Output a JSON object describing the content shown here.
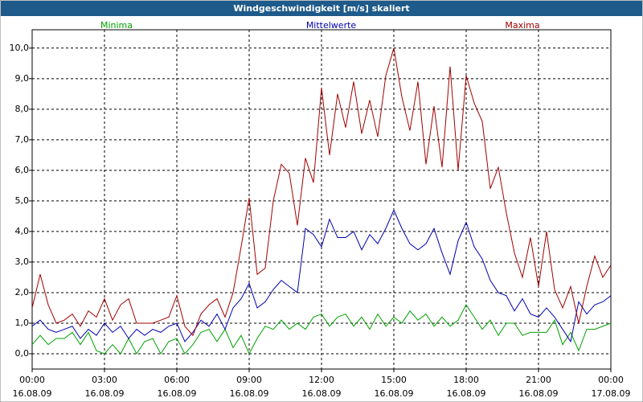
{
  "chart_data": {
    "type": "line",
    "title": "Windgeschwindigkeit [m/s] skaliert",
    "x": [
      0,
      20,
      40,
      60,
      80,
      100,
      120,
      140,
      160,
      180,
      200,
      220,
      240,
      260,
      280,
      300,
      320,
      340,
      360,
      380,
      400,
      420,
      440,
      460,
      480,
      500,
      520,
      540,
      560,
      580,
      600,
      620,
      640,
      660,
      680,
      700,
      720,
      740,
      760,
      780,
      800,
      820,
      840,
      860,
      880,
      900,
      920,
      940,
      960,
      980,
      1000,
      1020,
      1040,
      1060,
      1080,
      1100,
      1120,
      1140,
      1160,
      1180,
      1200,
      1220,
      1240,
      1260,
      1280,
      1300,
      1320,
      1340,
      1360,
      1380,
      1400,
      1420,
      1440
    ],
    "series": [
      {
        "name": "Minima",
        "color": "#00a000",
        "values": [
          0.3,
          0.6,
          0.3,
          0.5,
          0.5,
          0.7,
          0.3,
          0.7,
          0.1,
          0.0,
          0.3,
          0.0,
          0.5,
          0.0,
          0.4,
          0.5,
          0.0,
          0.4,
          0.5,
          0.0,
          0.3,
          0.7,
          0.8,
          0.4,
          0.8,
          0.2,
          0.6,
          0.0,
          0.5,
          0.9,
          0.8,
          1.1,
          0.8,
          1.0,
          0.8,
          1.2,
          1.3,
          0.9,
          1.2,
          1.3,
          0.9,
          1.2,
          0.8,
          1.3,
          0.9,
          1.2,
          1.0,
          1.4,
          1.1,
          1.3,
          0.9,
          1.2,
          0.9,
          1.1,
          1.6,
          1.2,
          0.8,
          1.1,
          0.6,
          1.0,
          1.0,
          0.6,
          0.7,
          0.7,
          0.7,
          1.1,
          0.3,
          0.7,
          0.1,
          0.8,
          0.8,
          0.9,
          1.0
        ]
      },
      {
        "name": "Mittelwerte",
        "color": "#0000b0",
        "values": [
          0.9,
          1.1,
          0.8,
          0.7,
          0.8,
          0.9,
          0.5,
          0.8,
          0.6,
          1.0,
          0.7,
          0.9,
          0.5,
          0.8,
          0.6,
          0.8,
          0.7,
          0.9,
          1.0,
          0.4,
          0.7,
          1.1,
          0.9,
          1.3,
          0.8,
          1.5,
          1.8,
          2.3,
          1.5,
          1.7,
          2.1,
          2.4,
          2.2,
          2.0,
          4.1,
          3.9,
          3.5,
          4.4,
          3.8,
          3.8,
          4.0,
          3.4,
          3.9,
          3.6,
          4.1,
          4.7,
          4.1,
          3.6,
          3.4,
          3.6,
          4.1,
          3.3,
          2.6,
          3.7,
          4.3,
          3.5,
          3.1,
          2.4,
          2.0,
          1.9,
          1.4,
          1.8,
          1.3,
          1.2,
          1.5,
          1.2,
          0.8,
          0.4,
          1.7,
          1.3,
          1.6,
          1.7,
          1.9
        ]
      },
      {
        "name": "Maxima",
        "color": "#a00000",
        "values": [
          1.5,
          2.6,
          1.6,
          1.0,
          1.1,
          1.3,
          0.9,
          1.4,
          1.2,
          1.8,
          1.1,
          1.6,
          1.8,
          1.0,
          1.0,
          1.0,
          1.1,
          1.2,
          1.9,
          0.9,
          0.6,
          1.3,
          1.6,
          1.8,
          1.2,
          2.0,
          3.5,
          5.1,
          2.6,
          2.8,
          5.0,
          6.2,
          5.9,
          4.2,
          6.4,
          5.6,
          8.7,
          6.5,
          8.5,
          7.4,
          8.9,
          7.2,
          8.3,
          7.1,
          9.1,
          10.0,
          8.4,
          7.3,
          8.9,
          6.2,
          8.1,
          6.1,
          9.4,
          6.0,
          9.1,
          8.2,
          7.6,
          5.4,
          6.1,
          4.6,
          3.3,
          2.5,
          3.8,
          2.2,
          4.0,
          2.1,
          1.5,
          2.2,
          1.0,
          2.2,
          3.2,
          2.5,
          2.9
        ]
      }
    ],
    "xlim": [
      0,
      1440
    ],
    "xticks": [
      {
        "value": 0,
        "label": "00:00",
        "date": "16.08.09"
      },
      {
        "value": 180,
        "label": "03:00",
        "date": "16.08.09"
      },
      {
        "value": 360,
        "label": "06:00",
        "date": "16.08.09"
      },
      {
        "value": 540,
        "label": "09:00",
        "date": "16.08.09"
      },
      {
        "value": 720,
        "label": "12:00",
        "date": "16.08.09"
      },
      {
        "value": 900,
        "label": "15:00",
        "date": "16.08.09"
      },
      {
        "value": 1080,
        "label": "18:00",
        "date": "16.08.09"
      },
      {
        "value": 1260,
        "label": "21:00",
        "date": "16.08.09"
      },
      {
        "value": 1440,
        "label": "00:00",
        "date": "17.08.09"
      }
    ],
    "ylim": [
      -0.5,
      10.6
    ],
    "yticks": [
      {
        "value": 0,
        "label": "0,0"
      },
      {
        "value": 1,
        "label": "1,0"
      },
      {
        "value": 2,
        "label": "2,0"
      },
      {
        "value": 3,
        "label": "3,0"
      },
      {
        "value": 4,
        "label": "4,0"
      },
      {
        "value": 5,
        "label": "5,0"
      },
      {
        "value": 6,
        "label": "6,0"
      },
      {
        "value": 7,
        "label": "7,0"
      },
      {
        "value": 8,
        "label": "8,0"
      },
      {
        "value": 9,
        "label": "9,0"
      },
      {
        "value": 10,
        "label": "10,0"
      }
    ],
    "grid": true
  }
}
